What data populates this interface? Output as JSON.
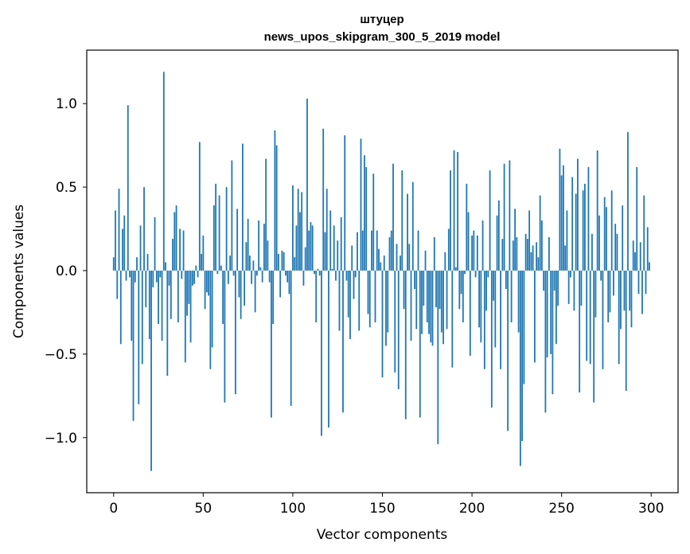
{
  "chart_data": {
    "type": "bar",
    "title": "штуцер",
    "subtitle": "news_upos_skipgram_300_5_2019 model",
    "xlabel": "Vector components",
    "ylabel": "Components values",
    "xlim": [
      -15,
      315
    ],
    "ylim": [
      -1.33,
      1.32
    ],
    "xticks": [
      0,
      50,
      100,
      150,
      200,
      250,
      300
    ],
    "xtick_labels": [
      "0",
      "50",
      "100",
      "150",
      "200",
      "250",
      "300"
    ],
    "yticks": [
      -1.0,
      -0.5,
      0.0,
      0.5,
      1.0
    ],
    "ytick_labels": [
      "−1.0",
      "−0.5",
      "0.0",
      "0.5",
      "1.0"
    ],
    "grid": false,
    "bar_color": "#1f77b4",
    "values": [
      0.08,
      0.36,
      -0.17,
      0.49,
      -0.44,
      0.25,
      0.33,
      -0.06,
      0.99,
      -0.04,
      -0.42,
      -0.9,
      -0.07,
      0.08,
      -0.8,
      0.27,
      -0.56,
      0.5,
      -0.22,
      0.1,
      -0.41,
      -1.2,
      -0.1,
      0.32,
      -0.07,
      -0.32,
      -0.04,
      -0.42,
      1.19,
      0.05,
      -0.63,
      -0.09,
      -0.29,
      0.19,
      0.35,
      0.39,
      -0.31,
      0.25,
      -0.05,
      0.24,
      -0.55,
      -0.27,
      -0.2,
      -0.43,
      -0.09,
      -0.08,
      0.03,
      -0.04,
      0.77,
      0.1,
      0.21,
      -0.23,
      -0.13,
      -0.15,
      -0.59,
      -0.46,
      0.39,
      0.52,
      -0.02,
      0.45,
      0.03,
      -0.32,
      -0.79,
      0.5,
      -0.08,
      0.09,
      0.66,
      -0.03,
      -0.74,
      0.37,
      -0.16,
      -0.29,
      0.76,
      -0.21,
      0.17,
      0.31,
      0.09,
      -0.08,
      0.06,
      -0.25,
      -0.03,
      0.3,
      0.02,
      -0.07,
      0.28,
      0.67,
      0.18,
      -0.07,
      -0.88,
      -0.32,
      0.84,
      0.75,
      0.1,
      -0.16,
      0.12,
      0.11,
      -0.03,
      -0.07,
      -0.14,
      -0.81,
      0.51,
      0.08,
      0.27,
      0.49,
      0.35,
      0.47,
      -0.09,
      0.14,
      1.03,
      0.24,
      0.29,
      0.27,
      -0.02,
      -0.31,
      0.01,
      -0.03,
      -0.99,
      0.85,
      0.23,
      0.49,
      -0.94,
      0.36,
      0.01,
      0.27,
      -0.06,
      0.18,
      -0.36,
      0.32,
      -0.85,
      0.81,
      -0.06,
      -0.28,
      -0.41,
      0.15,
      -0.17,
      -0.04,
      0.23,
      -0.36,
      0.79,
      0.24,
      0.69,
      0.62,
      -0.26,
      -0.34,
      0.24,
      0.58,
      -0.31,
      0.24,
      0.13,
      0.05,
      -0.64,
      0.09,
      -0.45,
      -0.37,
      0.2,
      0.24,
      0.64,
      -0.61,
      0.16,
      -0.71,
      0.09,
      0.6,
      -0.23,
      -0.89,
      0.46,
      0.16,
      -0.42,
      0.53,
      -0.11,
      -0.35,
      0.24,
      -0.88,
      -0.38,
      -0.21,
      0.12,
      -0.31,
      -0.38,
      -0.43,
      -0.45,
      0.2,
      -0.22,
      -1.04,
      -0.23,
      -0.37,
      -0.44,
      0.11,
      -0.35,
      0.25,
      0.6,
      -0.58,
      0.72,
      0.02,
      0.71,
      -0.23,
      -0.14,
      -0.31,
      -0.02,
      0.52,
      0.35,
      -0.51,
      0.21,
      0.24,
      -0.04,
      0.21,
      -0.34,
      -0.43,
      0.3,
      -0.59,
      -0.24,
      -0.04,
      0.6,
      -0.82,
      -0.18,
      -0.46,
      0.33,
      0.42,
      -0.59,
      0.19,
      0.64,
      -0.11,
      -0.96,
      0.66,
      -0.31,
      0.18,
      0.37,
      0.2,
      -0.37,
      -1.17,
      -1.02,
      -0.68,
      0.22,
      0.19,
      0.36,
      0.11,
      0.15,
      -0.55,
      0.17,
      0.08,
      0.45,
      0.3,
      -0.12,
      -0.85,
      -0.52,
      0.2,
      -0.5,
      -0.74,
      -0.12,
      -0.44,
      -0.21,
      0.73,
      0.57,
      0.63,
      0.15,
      0.36,
      -0.2,
      -0.04,
      0.56,
      -0.24,
      0.46,
      0.67,
      -0.73,
      -0.21,
      0.48,
      0.52,
      -0.54,
      0.62,
      -0.56,
      0.22,
      -0.79,
      -0.28,
      0.72,
      0.33,
      -0.06,
      -0.59,
      0.44,
      0.38,
      -0.31,
      -0.25,
      0.48,
      -0.15,
      0.28,
      0.22,
      -0.56,
      -0.35,
      0.39,
      -0.24,
      -0.72,
      0.83,
      -0.24,
      -0.34,
      0.18,
      0.11,
      0.62,
      -0.14,
      0.17,
      -0.26,
      0.45,
      -0.14,
      0.26,
      0.05
    ]
  }
}
